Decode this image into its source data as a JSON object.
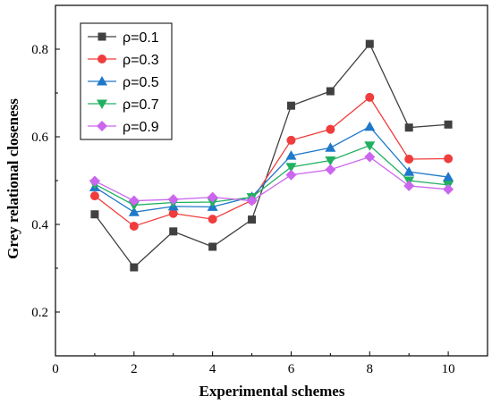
{
  "chart_data": {
    "type": "line",
    "title": "",
    "xlabel": "Experimental schemes",
    "ylabel": "Grey relational closeness",
    "xlim": [
      0,
      11
    ],
    "ylim": [
      0.1,
      0.9
    ],
    "xticks": [
      0,
      2,
      4,
      6,
      8,
      10
    ],
    "yticks": [
      0.2,
      0.4,
      0.6,
      0.8
    ],
    "xtick_labels": [
      "0",
      "2",
      "4",
      "6",
      "8",
      "10"
    ],
    "ytick_labels": [
      "0.2",
      "0.4",
      "0.6",
      "0.8"
    ],
    "grid": false,
    "legend_position": "top-left",
    "x": [
      1,
      2,
      3,
      4,
      5,
      6,
      7,
      8,
      9,
      10
    ],
    "series": [
      {
        "name": "ρ=0.1",
        "color": "#404040",
        "marker": "square",
        "values": [
          0.423,
          0.302,
          0.384,
          0.349,
          0.411,
          0.671,
          0.704,
          0.812,
          0.621,
          0.628
        ]
      },
      {
        "name": "ρ=0.3",
        "color": "#f03c3c",
        "marker": "circle",
        "values": [
          0.465,
          0.396,
          0.425,
          0.412,
          0.455,
          0.592,
          0.617,
          0.69,
          0.549,
          0.55
        ]
      },
      {
        "name": "ρ=0.5",
        "color": "#1f78c8",
        "marker": "triangle-up",
        "values": [
          0.485,
          0.428,
          0.441,
          0.44,
          0.463,
          0.557,
          0.575,
          0.623,
          0.52,
          0.508
        ]
      },
      {
        "name": "ρ=0.7",
        "color": "#20b060",
        "marker": "triangle-down",
        "values": [
          0.492,
          0.444,
          0.45,
          0.451,
          0.462,
          0.531,
          0.546,
          0.58,
          0.5,
          0.49
        ]
      },
      {
        "name": "ρ=0.9",
        "color": "#cc66ee",
        "marker": "diamond",
        "values": [
          0.499,
          0.454,
          0.457,
          0.462,
          0.454,
          0.513,
          0.525,
          0.554,
          0.488,
          0.48
        ]
      }
    ]
  }
}
